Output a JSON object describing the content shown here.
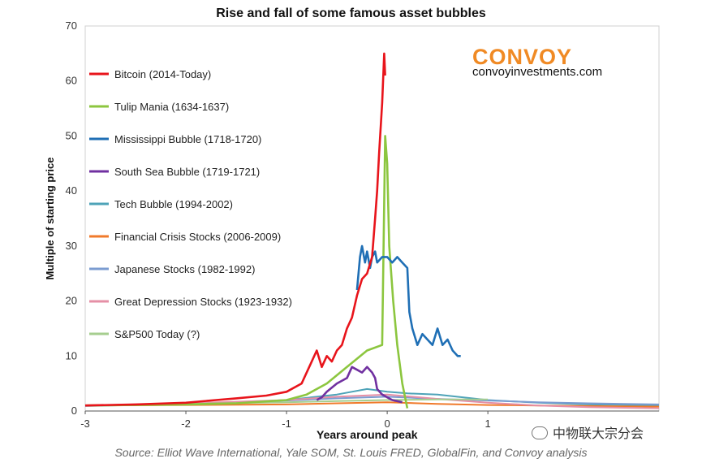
{
  "chart_data": {
    "type": "line",
    "title": "Rise and fall of some famous asset bubbles",
    "xlabel": "Years around peak",
    "ylabel": "Multiple of starting price",
    "xlim": [
      -3,
      2.7
    ],
    "ylim": [
      0,
      70
    ],
    "x_ticks": [
      "-3",
      "-2",
      "-1",
      "0",
      "1"
    ],
    "y_ticks": [
      "0",
      "10",
      "20",
      "30",
      "40",
      "50",
      "60",
      "70"
    ],
    "grid": false,
    "legend_position": "left",
    "series": [
      {
        "name": "Bitcoin (2014-Today)",
        "color": "#e8141b",
        "x": [
          -3,
          -2.5,
          -2.0,
          -1.7,
          -1.5,
          -1.2,
          -1.0,
          -0.85,
          -0.75,
          -0.7,
          -0.65,
          -0.6,
          -0.55,
          -0.5,
          -0.45,
          -0.4,
          -0.35,
          -0.3,
          -0.25,
          -0.2,
          -0.15,
          -0.12,
          -0.1,
          -0.08,
          -0.05,
          -0.03,
          -0.02
        ],
        "y": [
          1,
          1.2,
          1.5,
          2,
          2.3,
          2.8,
          3.5,
          5,
          9,
          11,
          8,
          10,
          9,
          11,
          12,
          15,
          17,
          21,
          24,
          25,
          28,
          35,
          40,
          47,
          56,
          65,
          61
        ]
      },
      {
        "name": "Tulip Mania (1634-1637)",
        "color": "#8cc63f",
        "x": [
          -3,
          -2.5,
          -2.0,
          -1.5,
          -1.0,
          -0.8,
          -0.6,
          -0.4,
          -0.2,
          -0.05,
          -0.02,
          0.0,
          0.02,
          0.06,
          0.1,
          0.15,
          0.2
        ],
        "y": [
          1,
          1.1,
          1.2,
          1.4,
          2,
          3,
          5,
          8,
          11,
          12,
          50,
          45,
          30,
          20,
          12,
          5,
          0.5
        ]
      },
      {
        "name": "Mississippi Bubble (1718-1720)",
        "color": "#1f6fb5",
        "x": [
          -0.3,
          -0.27,
          -0.25,
          -0.22,
          -0.2,
          -0.17,
          -0.15,
          -0.12,
          -0.1,
          -0.05,
          0.0,
          0.05,
          0.1,
          0.15,
          0.2,
          0.22,
          0.25,
          0.3,
          0.35,
          0.4,
          0.45,
          0.5,
          0.55,
          0.6,
          0.65,
          0.7,
          0.73
        ],
        "y": [
          22,
          28,
          30,
          27,
          29,
          26,
          28,
          29,
          27,
          28,
          28,
          27,
          28,
          27,
          26,
          18,
          15,
          12,
          14,
          13,
          12,
          15,
          12,
          13,
          11,
          10,
          10
        ]
      },
      {
        "name": "South Sea Bubble (1719-1721)",
        "color": "#7030a0",
        "x": [
          -0.7,
          -0.65,
          -0.6,
          -0.5,
          -0.4,
          -0.35,
          -0.3,
          -0.25,
          -0.2,
          -0.15,
          -0.12,
          -0.1,
          -0.05,
          0.0,
          0.05,
          0.1,
          0.15
        ],
        "y": [
          2,
          2.5,
          3.5,
          5,
          6,
          8,
          7.5,
          7,
          8,
          7,
          6,
          4,
          3,
          2.5,
          2,
          1.8,
          1.6
        ]
      },
      {
        "name": "Tech Bubble (1994-2002)",
        "color": "#4ea3b8",
        "x": [
          -3,
          -2.5,
          -2.0,
          -1.5,
          -1.0,
          -0.5,
          -0.2,
          0.0,
          0.2,
          0.5,
          1.0,
          1.5,
          2.0,
          2.5,
          2.7
        ],
        "y": [
          1,
          1.1,
          1.3,
          1.6,
          2,
          3,
          4,
          3.5,
          3.2,
          3,
          2,
          1.5,
          1.2,
          1.1,
          1.0
        ]
      },
      {
        "name": "Financial Crisis Stocks (2006-2009)",
        "color": "#f07a2b",
        "x": [
          -3,
          -2.0,
          -1.0,
          -0.5,
          0.0,
          0.5,
          1.0,
          1.5,
          2.0,
          2.7
        ],
        "y": [
          1,
          1.1,
          1.2,
          1.4,
          1.6,
          1.3,
          1.1,
          1.0,
          0.9,
          0.8
        ]
      },
      {
        "name": "Japanese Stocks (1982-1992)",
        "color": "#7b9cd1",
        "x": [
          -3,
          -2.0,
          -1.0,
          -0.5,
          0.0,
          0.5,
          1.0,
          1.5,
          2.0,
          2.7
        ],
        "y": [
          0.9,
          1.3,
          1.9,
          2.3,
          2.6,
          2.2,
          1.9,
          1.6,
          1.4,
          1.2
        ]
      },
      {
        "name": "Great Depression Stocks (1923-1932)",
        "color": "#e58fa6",
        "x": [
          -3,
          -2.0,
          -1.0,
          -0.5,
          0.0,
          0.5,
          1.0,
          1.5,
          2.0,
          2.7
        ],
        "y": [
          1,
          1.4,
          2.0,
          2.6,
          3.0,
          2.2,
          1.5,
          1.0,
          0.7,
          0.5
        ]
      },
      {
        "name": "S&P500 Today (?)",
        "color": "#a6ce8f",
        "x": [
          -3,
          -2.0,
          -1.0,
          -0.5,
          0.0,
          0.5,
          1.0
        ],
        "y": [
          1,
          1.3,
          1.6,
          1.8,
          2.0,
          2.1,
          2.1
        ]
      }
    ]
  },
  "brand": "CONVOY",
  "site": "convoyinvestments.com",
  "source": "Source: Elliot Wave International, Yale SOM, St. Louis FRED, GlobalFin, and Convoy analysis",
  "watermark": "中物联大宗分会"
}
